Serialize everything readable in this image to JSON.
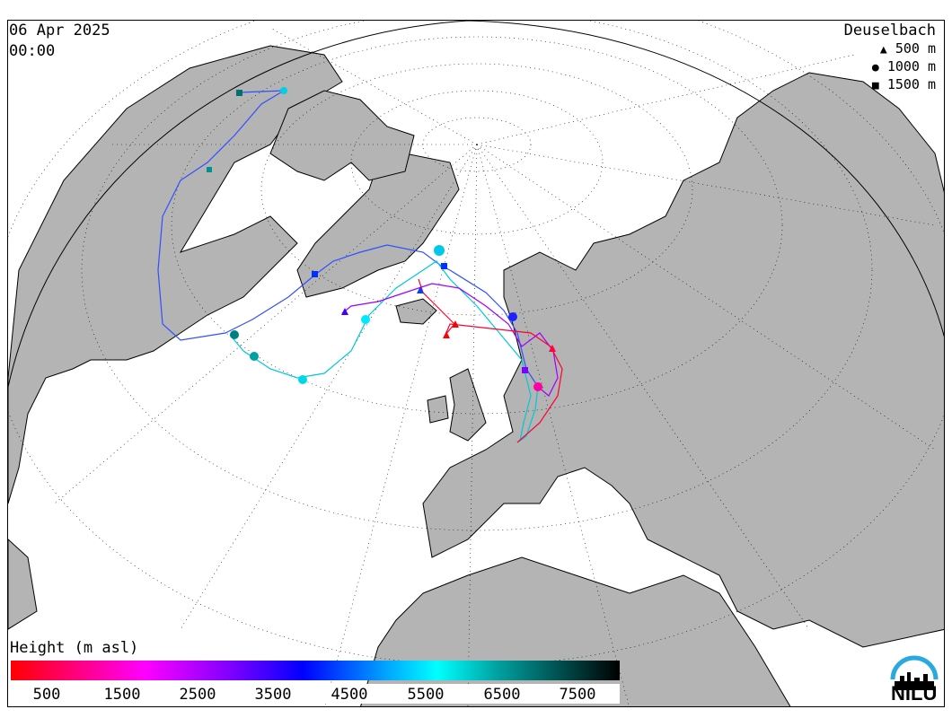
{
  "header": {
    "date": "06 Apr 2025",
    "time": "00:00",
    "station": "Deuselbach"
  },
  "legend": {
    "items": [
      {
        "symbol": "triangle",
        "label": "500 m"
      },
      {
        "symbol": "circle",
        "label": "1000 m"
      },
      {
        "symbol": "square",
        "label": "1500 m"
      }
    ]
  },
  "colorbar": {
    "title": "Height (m asl)",
    "ticks": [
      "500",
      "1500",
      "2500",
      "3500",
      "4500",
      "5500",
      "6500",
      "7500"
    ],
    "colors": [
      "#ff0000",
      "#ff00ff",
      "#8000ff",
      "#0000ff",
      "#00a8ff",
      "#00ffff",
      "#00a0a0",
      "#006060",
      "#000000"
    ]
  },
  "logo": {
    "text": "NILU"
  },
  "map": {
    "land_color": "#b4b4b4",
    "ocean_color": "#ffffff",
    "projection": "orthographic, centered near Greenland"
  }
}
